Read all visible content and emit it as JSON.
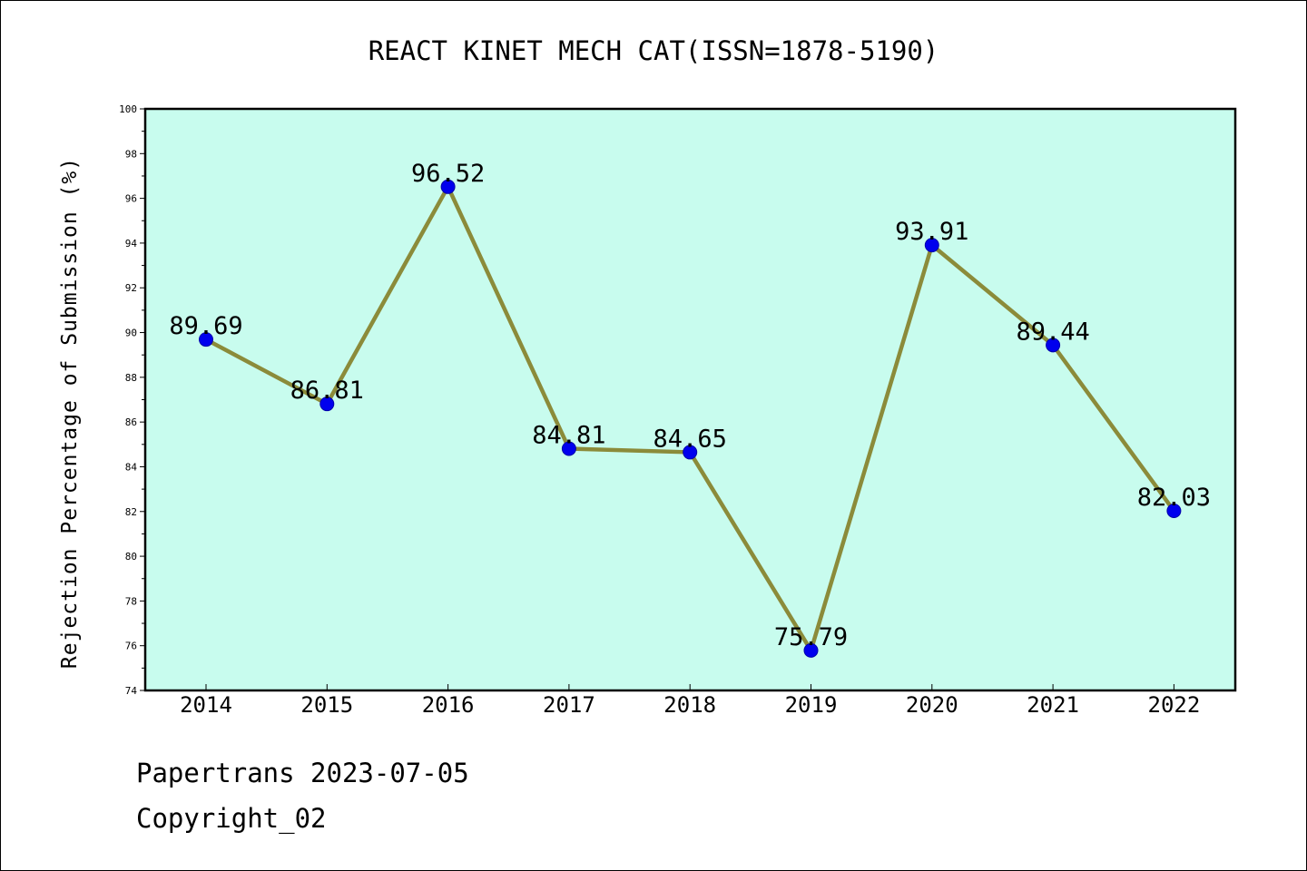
{
  "chart_data": {
    "type": "line",
    "title": "REACT KINET MECH CAT(ISSN=1878-5190)",
    "xlabel": "",
    "ylabel": "Rejection Percentage of Submission (%)",
    "categories": [
      "2014",
      "2015",
      "2016",
      "2017",
      "2018",
      "2019",
      "2020",
      "2021",
      "2022"
    ],
    "series": [
      {
        "values": [
          89.69,
          86.81,
          96.52,
          84.81,
          84.65,
          75.79,
          93.91,
          89.44,
          82.03
        ]
      }
    ],
    "data_labels": [
      "89.69",
      "86.81",
      "96.52",
      "84.81",
      "84.65",
      "75.79",
      "93.91",
      "89.44",
      "82.03"
    ],
    "ylim": [
      74,
      100
    ],
    "yticks": [
      "74",
      "76",
      "78",
      "80",
      "82",
      "84",
      "86",
      "88",
      "90",
      "92",
      "94",
      "96",
      "98",
      "100"
    ],
    "grid": false,
    "colors": {
      "plot_background": "#c8fcee",
      "line": "#8b8b3a",
      "marker": "#0000ee",
      "marker_edge": "#0000aa"
    }
  },
  "footer": {
    "line1": "Papertrans 2023-07-05",
    "line2": "Copyright_02"
  }
}
